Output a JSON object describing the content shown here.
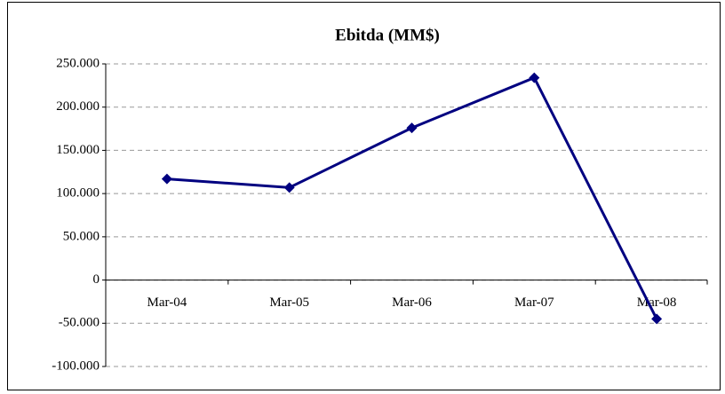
{
  "chart_data": {
    "type": "line",
    "title": "Ebitda (MM$)",
    "categories": [
      "Mar-04",
      "Mar-05",
      "Mar-06",
      "Mar-07",
      "Mar-08"
    ],
    "series": [
      {
        "name": "Ebitda",
        "color": "#000080",
        "values": [
          117,
          107,
          176,
          234,
          -45
        ]
      }
    ],
    "ylim": [
      -100,
      250
    ],
    "yticks": [
      {
        "value": -100,
        "label": "-100.000"
      },
      {
        "value": -50,
        "label": "-50.000"
      },
      0,
      {
        "value": 50,
        "label": "50.000"
      },
      {
        "value": 100,
        "label": "100.000"
      },
      {
        "value": 150,
        "label": "150.000"
      },
      {
        "value": 200,
        "label": "200.000"
      },
      {
        "value": 250,
        "label": "250.000"
      }
    ],
    "grid": true
  }
}
